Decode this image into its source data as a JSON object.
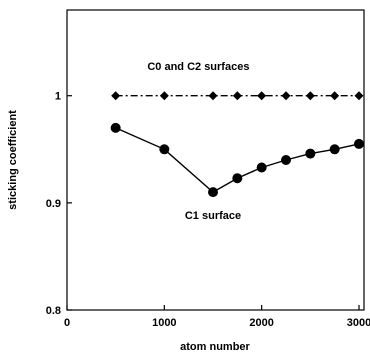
{
  "chart_data": {
    "type": "line",
    "title": "",
    "xlabel": "atom number",
    "ylabel": "sticking coefficient",
    "xlim": [
      0,
      3000
    ],
    "ylim": [
      0.8,
      1.0
    ],
    "y_display_max": 1.08,
    "x_ticks": [
      0,
      1000,
      2000,
      3000
    ],
    "y_ticks": [
      0.8,
      0.9,
      1.0
    ],
    "x_tick_labels": [
      "0",
      "1000",
      "2000",
      "3000"
    ],
    "y_tick_labels": [
      "0.8",
      "0.9",
      "1"
    ],
    "grid": false,
    "legend": "none",
    "series": [
      {
        "name": "C0 and C2 surfaces",
        "marker": "diamond",
        "line_style": "dash-dot",
        "color": "#000000",
        "x": [
          500,
          1000,
          1500,
          1750,
          2000,
          2250,
          2500,
          2750,
          3000
        ],
        "y": [
          1.0,
          1.0,
          1.0,
          1.0,
          1.0,
          1.0,
          1.0,
          1.0,
          1.0
        ]
      },
      {
        "name": "C1 surface",
        "marker": "circle",
        "line_style": "solid",
        "color": "#000000",
        "x": [
          500,
          1000,
          1500,
          1750,
          2000,
          2250,
          2500,
          2750,
          3000
        ],
        "y": [
          0.97,
          0.95,
          0.91,
          0.923,
          0.933,
          0.94,
          0.946,
          0.95,
          0.955
        ]
      }
    ],
    "annotations": [
      {
        "text": "C0 and C2 surfaces",
        "x": 1350,
        "y": 1.024
      },
      {
        "text": "C1 surface",
        "x": 1500,
        "y": 0.885
      }
    ]
  }
}
